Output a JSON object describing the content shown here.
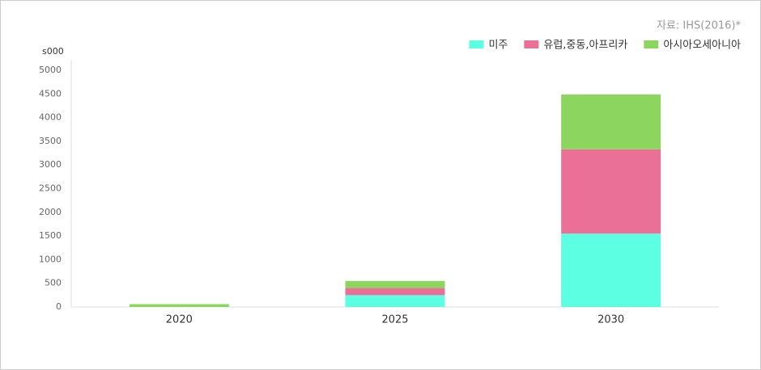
{
  "chart_data": {
    "type": "stacked_bar",
    "source": "자료: IHS(2016)*",
    "y_unit": "s000",
    "categories": [
      "2020",
      "2025",
      "2030"
    ],
    "series": [
      {
        "name": "미주",
        "color": "#5cffe2",
        "values": [
          0,
          250,
          1550
        ]
      },
      {
        "name": "유럽,중동,아프리카",
        "color": "#eb7098",
        "values": [
          0,
          150,
          1780
        ]
      },
      {
        "name": "아시아오세아니아",
        "color": "#8cd660",
        "values": [
          60,
          150,
          1160
        ]
      }
    ],
    "ylim": [
      0,
      5000
    ],
    "yticks": [
      0,
      500,
      1000,
      1500,
      2000,
      2500,
      3000,
      3500,
      4000,
      4500,
      5000
    ],
    "grid": false,
    "legend": "top-right"
  }
}
